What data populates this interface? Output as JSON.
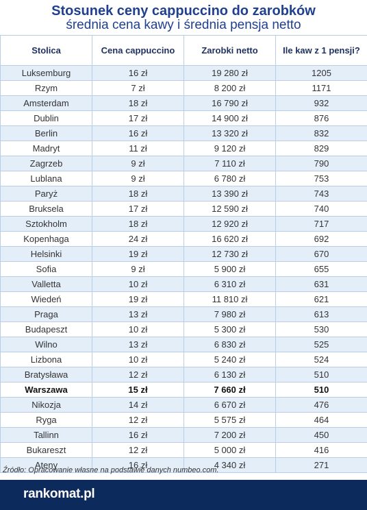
{
  "chart_data": {
    "type": "table",
    "title": "Stosunek ceny cappuccino do zarobków",
    "subtitle": "średnia cena kawy i średnia pensja netto",
    "columns": [
      "Stolica",
      "Cena cappuccino",
      "Zarobki netto",
      "Ile kaw z 1 pensji?"
    ],
    "rows": [
      [
        "Luksemburg",
        "16 zł",
        "19 280 zł",
        "1205"
      ],
      [
        "Rzym",
        "7 zł",
        "8 200 zł",
        "1171"
      ],
      [
        "Amsterdam",
        "18 zł",
        "16 790 zł",
        "932"
      ],
      [
        "Dublin",
        "17 zł",
        "14 900 zł",
        "876"
      ],
      [
        "Berlin",
        "16 zł",
        "13 320 zł",
        "832"
      ],
      [
        "Madryt",
        "11 zł",
        "9 120 zł",
        "829"
      ],
      [
        "Zagrzeb",
        "9 zł",
        "7 110 zł",
        "790"
      ],
      [
        "Lublana",
        "9 zł",
        "6 780 zł",
        "753"
      ],
      [
        "Paryż",
        "18 zł",
        "13 390 zł",
        "743"
      ],
      [
        "Bruksela",
        "17 zł",
        "12 590 zł",
        "740"
      ],
      [
        "Sztokholm",
        "18 zł",
        "12 920 zł",
        "717"
      ],
      [
        "Kopenhaga",
        "24 zł",
        "16 620 zł",
        "692"
      ],
      [
        "Helsinki",
        "19 zł",
        "12 730 zł",
        "670"
      ],
      [
        "Sofia",
        "9 zł",
        "5 900 zł",
        "655"
      ],
      [
        "Valletta",
        "10 zł",
        "6 310 zł",
        "631"
      ],
      [
        "Wiedeń",
        "19 zł",
        "11 810 zł",
        "621"
      ],
      [
        "Praga",
        "13 zł",
        "7 980 zł",
        "613"
      ],
      [
        "Budapeszt",
        "10 zł",
        "5 300 zł",
        "530"
      ],
      [
        "Wilno",
        "13 zł",
        "6 830 zł",
        "525"
      ],
      [
        "Lizbona",
        "10 zł",
        "5 240 zł",
        "524"
      ],
      [
        "Bratysława",
        "12 zł",
        "6 130 zł",
        "510"
      ],
      [
        "Warszawa",
        "15 zł",
        "7 660 zł",
        "510"
      ],
      [
        "Nikozja",
        "14 zł",
        "6 670 zł",
        "476"
      ],
      [
        "Ryga",
        "12 zł",
        "5 575 zł",
        "464"
      ],
      [
        "Tallinn",
        "16 zł",
        "7 200 zł",
        "450"
      ],
      [
        "Bukareszt",
        "12 zł",
        "5 000 zł",
        "416"
      ],
      [
        "Ateny",
        "16 zł",
        "4 340 zł",
        "271"
      ]
    ],
    "highlight_row": "Warszawa",
    "source": "Źródło: Opracowanie własne na podstawie danych numbeo.com.",
    "brand": "rankomat.pl"
  },
  "colors": {
    "title": "#1f3f8f",
    "row_stripe": "#e4eef9",
    "footer": "#0d2a5c"
  }
}
